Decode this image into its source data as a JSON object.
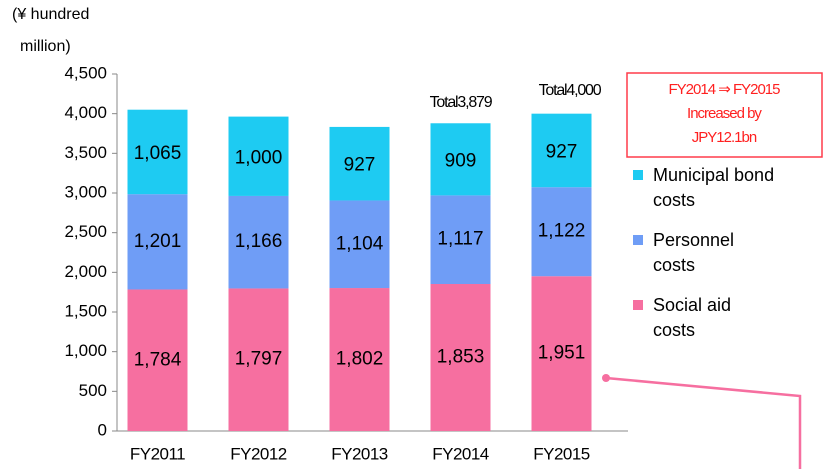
{
  "chart_data": {
    "type": "stacked_bar",
    "ylabel_lines": [
      "(¥ hundred",
      "million)"
    ],
    "categories": [
      "FY2011",
      "FY2012",
      "FY2013",
      "FY2014",
      "FY2015"
    ],
    "series": [
      {
        "name": "Social aid costs",
        "color": "#f66fa0",
        "values": [
          1784,
          1797,
          1802,
          1853,
          1951
        ],
        "value_labels": [
          "1,784",
          "1,797",
          "1,802",
          "1,853",
          "1,951"
        ]
      },
      {
        "name": "Personnel costs",
        "color": "#6f9df6",
        "values": [
          1201,
          1166,
          1104,
          1117,
          1122
        ],
        "value_labels": [
          "1,201",
          "1,166",
          "1,104",
          "1,117",
          "1,122"
        ]
      },
      {
        "name": "Municipal bond costs",
        "color": "#1ecbf2",
        "values": [
          1065,
          1000,
          927,
          909,
          927
        ],
        "value_labels": [
          "1,065",
          "1,000",
          "927",
          "909",
          "927"
        ]
      }
    ],
    "ylim": [
      0,
      4500
    ],
    "yticks": [
      0,
      500,
      {
        "value": 1000,
        "label": "1,000"
      },
      {
        "value": 1500,
        "label": "1,500"
      },
      {
        "value": 2000,
        "label": "2,000"
      },
      {
        "value": 2500,
        "label": "2,500"
      },
      {
        "value": 3000,
        "label": "3,000"
      },
      {
        "value": 3500,
        "label": "3,500"
      },
      {
        "value": 4000,
        "label": "4,000"
      },
      {
        "value": 4500,
        "label": "4,500"
      }
    ],
    "annotations": [
      {
        "text": "Total3,879",
        "category": 3
      },
      {
        "text": "Total4,000",
        "category": 4
      }
    ],
    "callout": [
      "FY2014 ⇒ FY2015",
      "Increased by",
      "JPY12.1bn"
    ]
  }
}
